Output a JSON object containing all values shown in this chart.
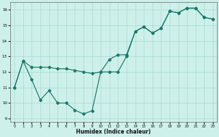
{
  "line1_x": [
    0,
    1,
    2,
    3,
    4,
    5,
    6,
    7,
    8,
    9,
    10,
    11,
    12,
    13,
    14,
    15,
    16,
    17,
    18,
    19,
    20,
    21,
    22,
    23
  ],
  "line1_y": [
    11.0,
    12.7,
    12.3,
    12.3,
    12.3,
    12.2,
    12.2,
    12.1,
    12.0,
    11.9,
    12.0,
    12.8,
    13.1,
    13.1,
    14.6,
    14.9,
    14.5,
    14.8,
    15.9,
    15.8,
    16.1,
    16.1,
    15.5,
    15.4
  ],
  "line2_x": [
    0,
    1,
    2,
    3,
    4,
    5,
    6,
    7,
    8,
    9,
    10,
    11,
    12,
    13,
    14,
    15,
    16,
    17,
    18,
    19,
    20,
    21,
    22,
    23
  ],
  "line2_y": [
    11.0,
    12.7,
    11.5,
    10.2,
    10.8,
    10.0,
    10.0,
    9.55,
    9.3,
    9.5,
    12.0,
    12.0,
    12.0,
    13.0,
    14.6,
    14.9,
    14.5,
    14.8,
    15.9,
    15.8,
    16.1,
    16.1,
    15.5,
    15.4
  ],
  "color": "#1a7a6a",
  "bg_color": "#cef0ea",
  "grid_color": "#aaddd5",
  "xlim": [
    -0.5,
    23.5
  ],
  "ylim": [
    8.8,
    16.5
  ],
  "yticks": [
    9,
    10,
    11,
    12,
    13,
    14,
    15,
    16
  ],
  "xticks": [
    0,
    1,
    2,
    3,
    4,
    5,
    6,
    7,
    8,
    9,
    10,
    11,
    12,
    13,
    14,
    15,
    16,
    17,
    18,
    19,
    20,
    21,
    22,
    23
  ],
  "xlabel": "Humidex (Indice chaleur)",
  "marker": "D",
  "markersize": 2.0,
  "linewidth": 0.9
}
